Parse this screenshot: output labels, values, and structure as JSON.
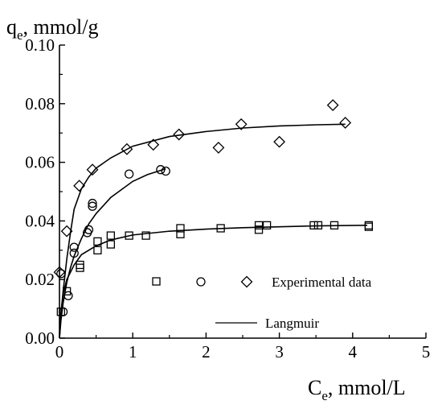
{
  "chart_data": {
    "type": "scatter",
    "x_axis": {
      "label_main": "C",
      "label_sub": "e",
      "label_unit": ", mmol/L",
      "range": [
        0,
        5
      ],
      "ticks": [
        0,
        1,
        2,
        3,
        4,
        5
      ],
      "tick_labels": [
        "0",
        "1",
        "2",
        "3",
        "4",
        "5"
      ]
    },
    "y_axis": {
      "label_main": "q",
      "label_sub": "e",
      "label_unit": ", mmol/g",
      "range": [
        0,
        0.1
      ],
      "ticks": [
        0,
        0.02,
        0.04,
        0.06,
        0.08,
        0.1
      ],
      "tick_labels": [
        "0.00",
        "0.02",
        "0.04",
        "0.06",
        "0.08",
        "0.10"
      ]
    },
    "grid": false,
    "legend": {
      "placement": "bottom-right",
      "experimental_label": "Experimental data",
      "model_label": "Langmuir"
    },
    "series": [
      {
        "marker": "square",
        "points": [
          [
            0.02,
            0.009
          ],
          [
            0.1,
            0.016
          ],
          [
            0.28,
            0.024
          ],
          [
            0.28,
            0.025
          ],
          [
            0.52,
            0.03
          ],
          [
            0.52,
            0.033
          ],
          [
            0.7,
            0.032
          ],
          [
            0.7,
            0.035
          ],
          [
            0.95,
            0.035
          ],
          [
            1.18,
            0.035
          ],
          [
            1.65,
            0.0355
          ],
          [
            1.65,
            0.0375
          ],
          [
            2.2,
            0.0375
          ],
          [
            2.72,
            0.037
          ],
          [
            2.72,
            0.0385
          ],
          [
            2.83,
            0.0385
          ],
          [
            3.47,
            0.0385
          ],
          [
            3.53,
            0.0385
          ],
          [
            3.75,
            0.0385
          ],
          [
            4.22,
            0.038
          ],
          [
            4.22,
            0.0385
          ]
        ],
        "fit": [
          [
            0.0,
            0.0
          ],
          [
            0.02,
            0.009
          ],
          [
            0.05,
            0.015
          ],
          [
            0.1,
            0.02
          ],
          [
            0.2,
            0.025
          ],
          [
            0.3,
            0.0285
          ],
          [
            0.5,
            0.0315
          ],
          [
            0.7,
            0.0335
          ],
          [
            1.0,
            0.0352
          ],
          [
            1.5,
            0.0365
          ],
          [
            2.0,
            0.0372
          ],
          [
            2.5,
            0.0377
          ],
          [
            3.0,
            0.038
          ],
          [
            3.5,
            0.0383
          ],
          [
            4.2,
            0.0385
          ]
        ]
      },
      {
        "marker": "circle",
        "points": [
          [
            0.02,
            0.022
          ],
          [
            0.05,
            0.009
          ],
          [
            0.12,
            0.0145
          ],
          [
            0.2,
            0.029
          ],
          [
            0.2,
            0.031
          ],
          [
            0.38,
            0.036
          ],
          [
            0.4,
            0.037
          ],
          [
            0.45,
            0.045
          ],
          [
            0.45,
            0.046
          ],
          [
            0.95,
            0.056
          ],
          [
            1.38,
            0.0575
          ],
          [
            1.45,
            0.057
          ]
        ],
        "fit": [
          [
            0.0,
            0.0
          ],
          [
            0.02,
            0.006
          ],
          [
            0.05,
            0.012
          ],
          [
            0.1,
            0.019
          ],
          [
            0.15,
            0.024
          ],
          [
            0.2,
            0.028
          ],
          [
            0.3,
            0.034
          ],
          [
            0.4,
            0.039
          ],
          [
            0.5,
            0.0425
          ],
          [
            0.7,
            0.048
          ],
          [
            1.0,
            0.0535
          ],
          [
            1.2,
            0.0558
          ],
          [
            1.45,
            0.0578
          ]
        ]
      },
      {
        "marker": "diamond",
        "points": [
          [
            0.0,
            0.0225
          ],
          [
            0.1,
            0.0365
          ],
          [
            0.27,
            0.052
          ],
          [
            0.45,
            0.0575
          ],
          [
            0.92,
            0.0645
          ],
          [
            1.28,
            0.066
          ],
          [
            1.63,
            0.0695
          ],
          [
            2.17,
            0.065
          ],
          [
            2.48,
            0.073
          ],
          [
            3.0,
            0.067
          ],
          [
            3.73,
            0.0795
          ],
          [
            3.9,
            0.0735
          ]
        ],
        "fit": [
          [
            0.0,
            0.0
          ],
          [
            0.02,
            0.008
          ],
          [
            0.05,
            0.016
          ],
          [
            0.1,
            0.027
          ],
          [
            0.15,
            0.036
          ],
          [
            0.2,
            0.044
          ],
          [
            0.3,
            0.051
          ],
          [
            0.4,
            0.055
          ],
          [
            0.5,
            0.058
          ],
          [
            0.7,
            0.0615
          ],
          [
            1.0,
            0.0655
          ],
          [
            1.5,
            0.0688
          ],
          [
            2.0,
            0.0705
          ],
          [
            2.5,
            0.0717
          ],
          [
            3.0,
            0.0724
          ],
          [
            3.5,
            0.0728
          ],
          [
            3.9,
            0.073
          ]
        ]
      }
    ]
  }
}
